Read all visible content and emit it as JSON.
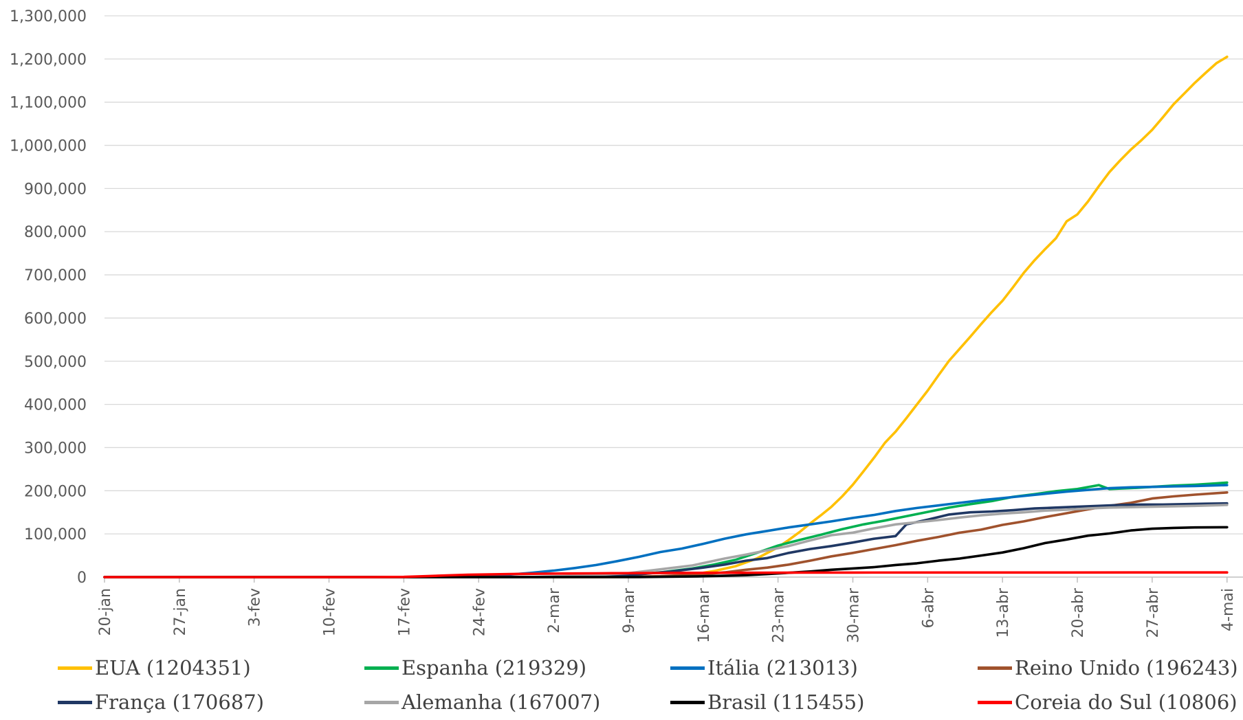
{
  "chart_data": {
    "type": "line",
    "title": "",
    "xlabel": "",
    "ylabel": "",
    "ylim": [
      0,
      1300000
    ],
    "yticks": [
      0,
      100000,
      200000,
      300000,
      400000,
      500000,
      600000,
      700000,
      800000,
      900000,
      1000000,
      1100000,
      1200000,
      1300000
    ],
    "ytick_labels": [
      "0",
      "100,000",
      "200,000",
      "300,000",
      "400,000",
      "500,000",
      "600,000",
      "700,000",
      "800,000",
      "900,000",
      "1,000,000",
      "1,100,000",
      "1,200,000",
      "1,300,000"
    ],
    "xtick_labels": [
      "20-jan",
      "27-jan",
      "3-fev",
      "10-fev",
      "17-fev",
      "24-fev",
      "2-mar",
      "9-mar",
      "16-mar",
      "23-mar",
      "30-mar",
      "6-abr",
      "13-abr",
      "20-abr",
      "27-abr",
      "4-mai"
    ],
    "x_day_range": [
      0,
      109
    ],
    "grid": true,
    "legend_position": "bottom",
    "series": [
      {
        "name": "EUA (1204351)",
        "color": "#FFC000",
        "points": [
          [
            0,
            0
          ],
          [
            40,
            60
          ],
          [
            46,
            100
          ],
          [
            50,
            500
          ],
          [
            53,
            1600
          ],
          [
            55,
            6000
          ],
          [
            57,
            14000
          ],
          [
            59,
            25000
          ],
          [
            61,
            43000
          ],
          [
            63,
            69000
          ],
          [
            64,
            86000
          ],
          [
            65,
            104000
          ],
          [
            66,
            124000
          ],
          [
            67,
            143000
          ],
          [
            68,
            163000
          ],
          [
            69,
            187000
          ],
          [
            70,
            214000
          ],
          [
            71,
            245000
          ],
          [
            72,
            277000
          ],
          [
            73,
            311000
          ],
          [
            74,
            337000
          ],
          [
            75,
            368000
          ],
          [
            76,
            400000
          ],
          [
            77,
            432000
          ],
          [
            78,
            467000
          ],
          [
            79,
            501000
          ],
          [
            80,
            529000
          ],
          [
            81,
            557000
          ],
          [
            82,
            586000
          ],
          [
            83,
            614000
          ],
          [
            84,
            640000
          ],
          [
            85,
            672000
          ],
          [
            86,
            705000
          ],
          [
            87,
            734000
          ],
          [
            88,
            760000
          ],
          [
            89,
            785000
          ],
          [
            90,
            824000
          ],
          [
            91,
            840000
          ],
          [
            92,
            870000
          ],
          [
            93,
            905000
          ],
          [
            94,
            938000
          ],
          [
            95,
            965000
          ],
          [
            96,
            990000
          ],
          [
            97,
            1012000
          ],
          [
            98,
            1036000
          ],
          [
            99,
            1065000
          ],
          [
            100,
            1095000
          ],
          [
            101,
            1120000
          ],
          [
            102,
            1145000
          ],
          [
            103,
            1168000
          ],
          [
            104,
            1190000
          ],
          [
            105,
            1205000
          ]
        ]
      },
      {
        "name": "Espanha (219329)",
        "color": "#00B050",
        "points": [
          [
            0,
            0
          ],
          [
            40,
            100
          ],
          [
            43,
            500
          ],
          [
            46,
            1700
          ],
          [
            49,
            5000
          ],
          [
            52,
            11000
          ],
          [
            55,
            20000
          ],
          [
            57,
            29000
          ],
          [
            59,
            40000
          ],
          [
            61,
            56000
          ],
          [
            63,
            73000
          ],
          [
            65,
            86000
          ],
          [
            67,
            98000
          ],
          [
            69,
            111000
          ],
          [
            71,
            122000
          ],
          [
            73,
            131000
          ],
          [
            75,
            141000
          ],
          [
            77,
            151000
          ],
          [
            79,
            161000
          ],
          [
            81,
            169000
          ],
          [
            83,
            176000
          ],
          [
            85,
            186000
          ],
          [
            87,
            192000
          ],
          [
            89,
            199000
          ],
          [
            91,
            204000
          ],
          [
            93,
            213000
          ],
          [
            94,
            204000
          ],
          [
            96,
            206000
          ],
          [
            98,
            209000
          ],
          [
            100,
            212000
          ],
          [
            102,
            214000
          ],
          [
            104,
            217000
          ],
          [
            105,
            219000
          ]
        ]
      },
      {
        "name": "Itália (213013)",
        "color": "#0070C0",
        "points": [
          [
            0,
            0
          ],
          [
            29,
            3
          ],
          [
            32,
            300
          ],
          [
            34,
            1600
          ],
          [
            36,
            3000
          ],
          [
            38,
            6000
          ],
          [
            40,
            10000
          ],
          [
            42,
            15000
          ],
          [
            44,
            21000
          ],
          [
            46,
            28000
          ],
          [
            48,
            37000
          ],
          [
            50,
            47000
          ],
          [
            52,
            58000
          ],
          [
            54,
            66000
          ],
          [
            56,
            77000
          ],
          [
            58,
            89000
          ],
          [
            60,
            99000
          ],
          [
            62,
            107000
          ],
          [
            64,
            115000
          ],
          [
            66,
            122000
          ],
          [
            68,
            129000
          ],
          [
            70,
            137000
          ],
          [
            72,
            144000
          ],
          [
            74,
            153000
          ],
          [
            76,
            160000
          ],
          [
            78,
            166000
          ],
          [
            80,
            172000
          ],
          [
            82,
            178000
          ],
          [
            84,
            183000
          ],
          [
            86,
            188000
          ],
          [
            88,
            193000
          ],
          [
            90,
            198000
          ],
          [
            92,
            202000
          ],
          [
            94,
            206000
          ],
          [
            96,
            208000
          ],
          [
            98,
            209000
          ],
          [
            100,
            210000
          ],
          [
            102,
            211000
          ],
          [
            105,
            213000
          ]
        ]
      },
      {
        "name": "Reino Unido (196243)",
        "color": "#A0522D",
        "points": [
          [
            0,
            0
          ],
          [
            40,
            10
          ],
          [
            48,
            500
          ],
          [
            52,
            2000
          ],
          [
            56,
            6600
          ],
          [
            58,
            11000
          ],
          [
            60,
            17000
          ],
          [
            62,
            22000
          ],
          [
            64,
            29000
          ],
          [
            66,
            38000
          ],
          [
            68,
            48000
          ],
          [
            70,
            56000
          ],
          [
            72,
            65000
          ],
          [
            74,
            74000
          ],
          [
            76,
            84000
          ],
          [
            78,
            93000
          ],
          [
            80,
            103000
          ],
          [
            82,
            110000
          ],
          [
            84,
            121000
          ],
          [
            86,
            129000
          ],
          [
            88,
            139000
          ],
          [
            90,
            148000
          ],
          [
            92,
            157000
          ],
          [
            94,
            165000
          ],
          [
            96,
            172000
          ],
          [
            98,
            182000
          ],
          [
            100,
            187000
          ],
          [
            102,
            191000
          ],
          [
            105,
            196000
          ]
        ]
      },
      {
        "name": "França (170687)",
        "color": "#203864",
        "points": [
          [
            0,
            0
          ],
          [
            40,
            100
          ],
          [
            46,
            1800
          ],
          [
            50,
            6600
          ],
          [
            53,
            13000
          ],
          [
            56,
            22000
          ],
          [
            58,
            29000
          ],
          [
            60,
            38000
          ],
          [
            62,
            44000
          ],
          [
            64,
            56000
          ],
          [
            66,
            65000
          ],
          [
            68,
            72000
          ],
          [
            70,
            80000
          ],
          [
            72,
            89000
          ],
          [
            74,
            95000
          ],
          [
            75,
            122000
          ],
          [
            77,
            133000
          ],
          [
            79,
            145000
          ],
          [
            81,
            150000
          ],
          [
            83,
            152000
          ],
          [
            85,
            155000
          ],
          [
            87,
            159000
          ],
          [
            89,
            161000
          ],
          [
            91,
            163000
          ],
          [
            93,
            165000
          ],
          [
            95,
            167000
          ],
          [
            97,
            168000
          ],
          [
            99,
            168000
          ],
          [
            101,
            169000
          ],
          [
            103,
            170000
          ],
          [
            105,
            170687
          ]
        ]
      },
      {
        "name": "Alemanha (167007)",
        "color": "#A6A6A6",
        "points": [
          [
            0,
            0
          ],
          [
            40,
            150
          ],
          [
            46,
            4800
          ],
          [
            49,
            9000
          ],
          [
            52,
            18000
          ],
          [
            55,
            27000
          ],
          [
            58,
            43000
          ],
          [
            60,
            52000
          ],
          [
            62,
            62000
          ],
          [
            64,
            72000
          ],
          [
            66,
            85000
          ],
          [
            68,
            97000
          ],
          [
            70,
            103000
          ],
          [
            72,
            113000
          ],
          [
            74,
            122000
          ],
          [
            76,
            127000
          ],
          [
            78,
            132000
          ],
          [
            80,
            138000
          ],
          [
            82,
            143000
          ],
          [
            84,
            147000
          ],
          [
            86,
            150000
          ],
          [
            88,
            154000
          ],
          [
            90,
            156000
          ],
          [
            92,
            159000
          ],
          [
            94,
            161000
          ],
          [
            96,
            162000
          ],
          [
            98,
            163000
          ],
          [
            100,
            164000
          ],
          [
            102,
            165000
          ],
          [
            105,
            167007
          ]
        ]
      },
      {
        "name": "Brasil (115455)",
        "color": "#000000",
        "points": [
          [
            0,
            0
          ],
          [
            50,
            200
          ],
          [
            55,
            1500
          ],
          [
            58,
            3000
          ],
          [
            60,
            4500
          ],
          [
            62,
            7000
          ],
          [
            64,
            10000
          ],
          [
            66,
            13000
          ],
          [
            68,
            17000
          ],
          [
            70,
            20000
          ],
          [
            72,
            23000
          ],
          [
            74,
            28000
          ],
          [
            76,
            32000
          ],
          [
            78,
            38000
          ],
          [
            80,
            43000
          ],
          [
            82,
            50000
          ],
          [
            84,
            57000
          ],
          [
            86,
            67000
          ],
          [
            88,
            79000
          ],
          [
            90,
            87000
          ],
          [
            92,
            96000
          ],
          [
            94,
            101000
          ],
          [
            96,
            108000
          ],
          [
            98,
            112000
          ],
          [
            100,
            114000
          ],
          [
            102,
            115000
          ],
          [
            105,
            115455
          ]
        ]
      },
      {
        "name": "Coreia do Sul (10806)",
        "color": "#FF0000",
        "points": [
          [
            0,
            0
          ],
          [
            25,
            30
          ],
          [
            28,
            500
          ],
          [
            30,
            2000
          ],
          [
            32,
            4000
          ],
          [
            34,
            5500
          ],
          [
            36,
            6200
          ],
          [
            38,
            7000
          ],
          [
            40,
            7700
          ],
          [
            42,
            8100
          ],
          [
            44,
            8400
          ],
          [
            46,
            8800
          ],
          [
            48,
            9100
          ],
          [
            50,
            9300
          ],
          [
            55,
            9800
          ],
          [
            60,
            10100
          ],
          [
            65,
            10300
          ],
          [
            70,
            10500
          ],
          [
            80,
            10650
          ],
          [
            90,
            10700
          ],
          [
            100,
            10770
          ],
          [
            105,
            10806
          ]
        ]
      }
    ]
  }
}
